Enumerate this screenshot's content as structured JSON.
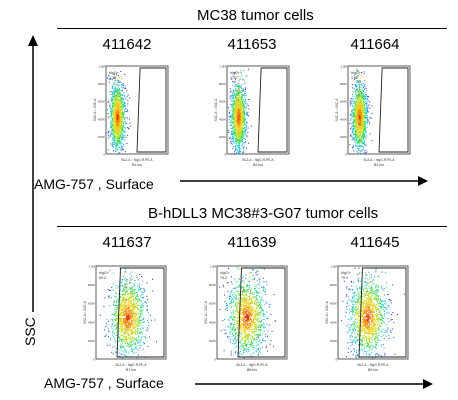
{
  "top_panel": {
    "title": "MC38 tumor cells",
    "samples": [
      "411642",
      "411653",
      "411664"
    ],
    "x_caption": "AMG-757 , Surface"
  },
  "bottom_panel": {
    "title": "B-hDLL3 MC38#3-G07 tumor cells",
    "samples": [
      "411637",
      "411639",
      "411645"
    ],
    "x_caption": "AMG-757 , Surface"
  },
  "y_caption": "SSC",
  "chart_data": [
    {
      "type": "scatter",
      "panel": "MC38 tumor cells",
      "sample": "411642",
      "gate_name": "hIgG+",
      "gate_percent": "1.38",
      "xlabel": "BL2-A :: hIgG-R-PE-A",
      "ylabel": "SSC-A :: SSC-A",
      "file": "B1.fcs",
      "density": {
        "center_x": 0.18,
        "center_y": 0.42,
        "spread_x": 0.06,
        "spread_y": 0.18
      }
    },
    {
      "type": "scatter",
      "panel": "MC38 tumor cells",
      "sample": "411653",
      "gate_name": "hIgG+",
      "gate_percent": "1.42",
      "xlabel": "BL2-A :: hIgG-R-PE-A",
      "ylabel": "SSC-A :: SSC-A",
      "file": "B2.fcs",
      "density": {
        "center_x": 0.18,
        "center_y": 0.42,
        "spread_x": 0.06,
        "spread_y": 0.18
      }
    },
    {
      "type": "scatter",
      "panel": "MC38 tumor cells",
      "sample": "411664",
      "gate_name": "hIgG+",
      "gate_percent": "1.02",
      "xlabel": "BL2-A :: hIgG-R-PE-A",
      "ylabel": "SSC-A :: SSC-A",
      "file": "B3.fcs",
      "density": {
        "center_x": 0.18,
        "center_y": 0.42,
        "spread_x": 0.06,
        "spread_y": 0.18
      }
    },
    {
      "type": "scatter",
      "panel": "B-hDLL3 MC38#3-G07 tumor cells",
      "sample": "411637",
      "gate_name": "hIgG+",
      "gate_percent": "89.2",
      "xlabel": "BL2-A :: hIgG-R-PE-A",
      "ylabel": "SSC-A :: SSC-A",
      "file": "B7.fcs",
      "density": {
        "center_x": 0.45,
        "center_y": 0.45,
        "spread_x": 0.12,
        "spread_y": 0.2
      }
    },
    {
      "type": "scatter",
      "panel": "B-hDLL3 MC38#3-G07 tumor cells",
      "sample": "411639",
      "gate_name": "hIgG+",
      "gate_percent": "79.3",
      "xlabel": "BL2-A :: hIgG-R-PE-A",
      "ylabel": "SSC-A :: SSC-A",
      "file": "B8.fcs",
      "density": {
        "center_x": 0.42,
        "center_y": 0.45,
        "spread_x": 0.13,
        "spread_y": 0.2
      }
    },
    {
      "type": "scatter",
      "panel": "B-hDLL3 MC38#3-G07 tumor cells",
      "sample": "411645",
      "gate_name": "hIgG+",
      "gate_percent": "79.4",
      "xlabel": "BL2-A :: hIgG-R-PE-A",
      "ylabel": "SSC-A :: SSC-A",
      "file": "B9.fcs",
      "density": {
        "center_x": 0.42,
        "center_y": 0.45,
        "spread_x": 0.13,
        "spread_y": 0.2
      }
    }
  ]
}
